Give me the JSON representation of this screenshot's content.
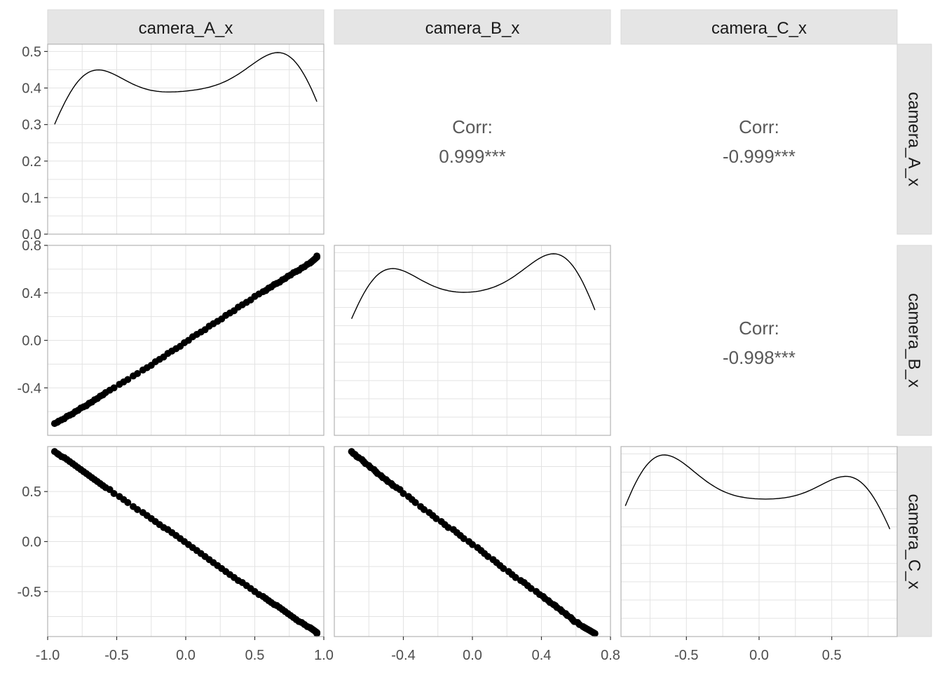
{
  "chart_data": {
    "type": "scatter",
    "layout": "pairs-matrix",
    "variables": [
      "camera_A_x",
      "camera_B_x",
      "camera_C_x"
    ],
    "correlations": [
      {
        "row": 0,
        "col": 1,
        "label": "Corr:",
        "value": "0.999***"
      },
      {
        "row": 0,
        "col": 2,
        "label": "Corr:",
        "value": "-0.999***"
      },
      {
        "row": 1,
        "col": 2,
        "label": "Corr:",
        "value": "-0.998***"
      }
    ],
    "ranges": {
      "camera_A_x": [
        -1.0,
        1.0
      ],
      "camera_B_x": [
        -0.8,
        0.8
      ],
      "camera_C_x": [
        -0.95,
        0.95
      ]
    },
    "density_range": [
      0,
      0.52
    ],
    "x_ticks": {
      "camera_A_x": [
        "-1.0",
        "-0.5",
        "0.0",
        "0.5",
        "1.0"
      ],
      "camera_B_x": [
        "-0.4",
        "0.0",
        "0.4",
        "0.8"
      ],
      "camera_C_x": [
        "-0.5",
        "0.0",
        "0.5"
      ]
    },
    "y_ticks": {
      "density": [
        "0.0",
        "0.1",
        "0.2",
        "0.3",
        "0.4",
        "0.5"
      ],
      "camera_B_x": [
        "-0.4",
        "0.0",
        "0.4",
        "0.8"
      ],
      "camera_C_x": [
        "-0.5",
        "0.0",
        "0.5"
      ]
    },
    "points": {
      "camera_A_x": [
        -0.95,
        -0.93,
        -0.92,
        -0.9,
        -0.88,
        -0.86,
        -0.84,
        -0.82,
        -0.8,
        -0.78,
        -0.76,
        -0.74,
        -0.72,
        -0.7,
        -0.68,
        -0.66,
        -0.64,
        -0.62,
        -0.6,
        -0.58,
        -0.55,
        -0.52,
        -0.48,
        -0.45,
        -0.42,
        -0.38,
        -0.35,
        -0.31,
        -0.28,
        -0.25,
        -0.22,
        -0.19,
        -0.16,
        -0.13,
        -0.1,
        -0.07,
        -0.04,
        -0.01,
        0.02,
        0.05,
        0.08,
        0.11,
        0.14,
        0.17,
        0.2,
        0.23,
        0.26,
        0.29,
        0.32,
        0.35,
        0.38,
        0.41,
        0.44,
        0.47,
        0.5,
        0.53,
        0.56,
        0.58,
        0.6,
        0.62,
        0.64,
        0.66,
        0.68,
        0.7,
        0.72,
        0.74,
        0.76,
        0.78,
        0.8,
        0.82,
        0.84,
        0.86,
        0.88,
        0.9,
        0.91,
        0.92,
        0.93,
        0.94,
        0.95,
        0.95
      ],
      "camera_B_x": [
        -0.7,
        -0.69,
        -0.68,
        -0.67,
        -0.66,
        -0.64,
        -0.63,
        -0.62,
        -0.6,
        -0.59,
        -0.57,
        -0.56,
        -0.55,
        -0.53,
        -0.52,
        -0.5,
        -0.49,
        -0.47,
        -0.46,
        -0.44,
        -0.42,
        -0.4,
        -0.37,
        -0.35,
        -0.33,
        -0.3,
        -0.28,
        -0.25,
        -0.23,
        -0.21,
        -0.18,
        -0.16,
        -0.14,
        -0.11,
        -0.09,
        -0.07,
        -0.05,
        -0.02,
        0.0,
        0.03,
        0.05,
        0.07,
        0.09,
        0.12,
        0.14,
        0.16,
        0.18,
        0.21,
        0.23,
        0.25,
        0.28,
        0.3,
        0.32,
        0.34,
        0.37,
        0.39,
        0.41,
        0.42,
        0.44,
        0.45,
        0.47,
        0.48,
        0.49,
        0.51,
        0.52,
        0.54,
        0.55,
        0.57,
        0.58,
        0.59,
        0.61,
        0.62,
        0.64,
        0.65,
        0.66,
        0.67,
        0.68,
        0.69,
        0.7,
        0.71
      ],
      "camera_C_x": [
        0.9,
        0.88,
        0.87,
        0.85,
        0.84,
        0.82,
        0.8,
        0.78,
        0.76,
        0.74,
        0.72,
        0.7,
        0.68,
        0.66,
        0.64,
        0.62,
        0.6,
        0.58,
        0.56,
        0.54,
        0.52,
        0.48,
        0.45,
        0.42,
        0.39,
        0.35,
        0.32,
        0.29,
        0.26,
        0.23,
        0.2,
        0.17,
        0.14,
        0.12,
        0.09,
        0.06,
        0.03,
        0.0,
        -0.03,
        -0.06,
        -0.09,
        -0.12,
        -0.15,
        -0.18,
        -0.21,
        -0.24,
        -0.27,
        -0.3,
        -0.33,
        -0.36,
        -0.39,
        -0.41,
        -0.44,
        -0.47,
        -0.5,
        -0.53,
        -0.55,
        -0.57,
        -0.59,
        -0.61,
        -0.63,
        -0.64,
        -0.66,
        -0.68,
        -0.7,
        -0.72,
        -0.74,
        -0.76,
        -0.78,
        -0.8,
        -0.81,
        -0.83,
        -0.85,
        -0.86,
        -0.87,
        -0.88,
        -0.89,
        -0.9,
        -0.91,
        -0.92
      ]
    },
    "grid": true,
    "legend": "none"
  }
}
